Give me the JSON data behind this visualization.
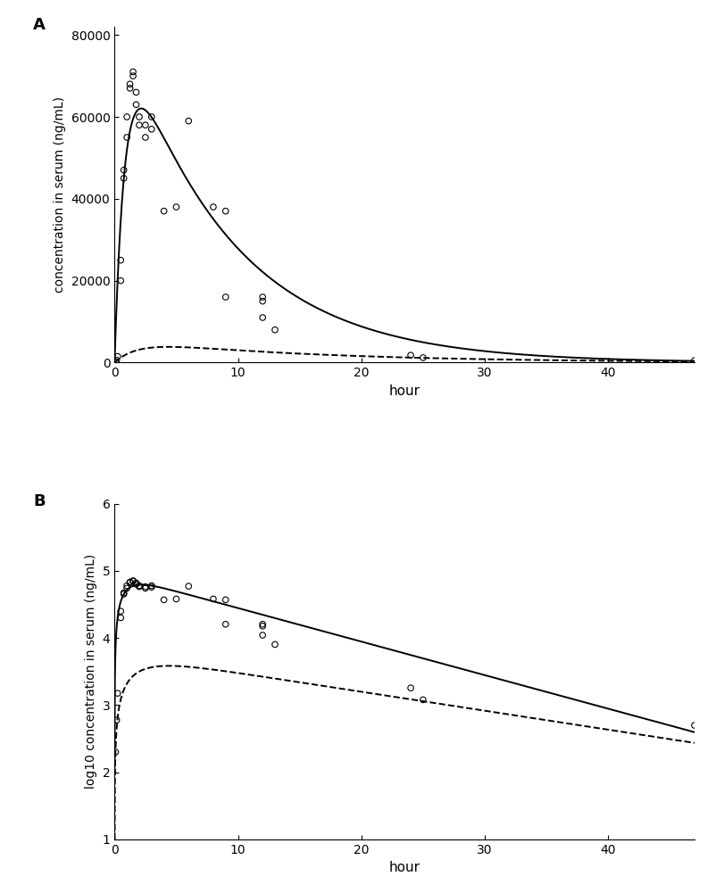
{
  "panel_a": {
    "label": "A",
    "xlabel": "hour",
    "ylabel": "concentration in serum (ng/mL)",
    "xlim": [
      0,
      47
    ],
    "ylim": [
      0,
      82000
    ],
    "yticks": [
      0,
      20000,
      40000,
      60000,
      80000
    ],
    "xticks": [
      0,
      10,
      20,
      30,
      40
    ]
  },
  "panel_b": {
    "label": "B",
    "xlabel": "hour",
    "ylabel": "log10 concentration in serum (ng/mL)",
    "xlim": [
      0,
      47
    ],
    "ylim": [
      1,
      6
    ],
    "yticks": [
      1,
      2,
      3,
      4,
      5,
      6
    ],
    "xticks": [
      0,
      10,
      20,
      30,
      40
    ]
  },
  "scatter_x": [
    0.083,
    0.167,
    0.25,
    0.5,
    0.5,
    0.75,
    0.75,
    1.0,
    1.0,
    1.25,
    1.25,
    1.5,
    1.5,
    1.75,
    1.75,
    2.0,
    2.0,
    2.5,
    2.5,
    3.0,
    3.0,
    4.0,
    5.0,
    6.0,
    8.0,
    9.0,
    9.0,
    12.0,
    12.0,
    12.0,
    13.0,
    24.0,
    25.0,
    47.0
  ],
  "scatter_y_a": [
    200,
    600,
    1500,
    20000,
    25000,
    45000,
    47000,
    55000,
    60000,
    67000,
    68000,
    70000,
    71000,
    66000,
    63000,
    60000,
    58000,
    55000,
    58000,
    57000,
    60000,
    37000,
    38000,
    59000,
    38000,
    37000,
    16000,
    15000,
    16000,
    11000,
    8000,
    1800,
    1200,
    500
  ],
  "solid_A": 88000,
  "solid_alpha": 1.2,
  "solid_beta": 0.115,
  "dashed_A": 5800,
  "dashed_alpha": 0.55,
  "dashed_beta": 0.065,
  "figure_bg": "white",
  "line_color": "black",
  "line_width": 1.4,
  "scatter_size": 22,
  "scatter_lw": 0.8
}
